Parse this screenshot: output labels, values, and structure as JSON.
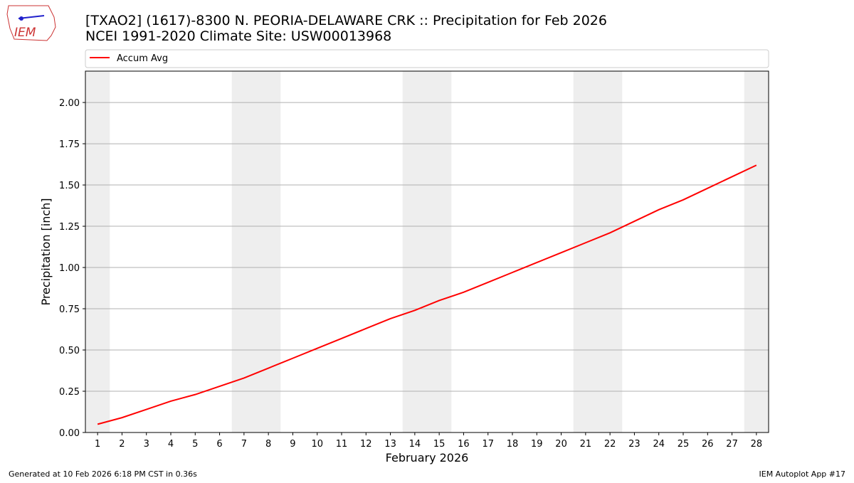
{
  "logo_text": "IEM",
  "footer_left": "Generated at 10 Feb 2026 6:18 PM CST in 0.36s",
  "footer_right": "IEM Autoplot App #17",
  "chart_data": {
    "type": "line",
    "title": "[TXAO2] (1617)-8300 N. PEORIA-DELAWARE CRK :: Precipitation for Feb 2026",
    "subtitle": "NCEI 1991-2020 Climate Site: USW00013968",
    "xlabel": "February 2026",
    "ylabel": "Precipitation [inch]",
    "x": [
      1,
      2,
      3,
      4,
      5,
      6,
      7,
      8,
      9,
      10,
      11,
      12,
      13,
      14,
      15,
      16,
      17,
      18,
      19,
      20,
      21,
      22,
      23,
      24,
      25,
      26,
      27,
      28
    ],
    "series": [
      {
        "name": "Accum Avg",
        "color": "#ff0000",
        "values": [
          0.05,
          0.09,
          0.14,
          0.19,
          0.23,
          0.28,
          0.33,
          0.39,
          0.45,
          0.51,
          0.57,
          0.63,
          0.69,
          0.74,
          0.8,
          0.85,
          0.91,
          0.97,
          1.03,
          1.09,
          1.15,
          1.21,
          1.28,
          1.35,
          1.41,
          1.48,
          1.55,
          1.62
        ]
      }
    ],
    "xlim": [
      0.5,
      28.5
    ],
    "ylim": [
      0,
      2.19
    ],
    "xticks": [
      1,
      2,
      3,
      4,
      5,
      6,
      7,
      8,
      9,
      10,
      11,
      12,
      13,
      14,
      15,
      16,
      17,
      18,
      19,
      20,
      21,
      22,
      23,
      24,
      25,
      26,
      27,
      28
    ],
    "yticks": [
      {
        "value": 0,
        "label": "0.00"
      },
      {
        "value": 0.25,
        "label": "0.25"
      },
      {
        "value": 0.5,
        "label": "0.50"
      },
      {
        "value": 0.75,
        "label": "0.75"
      },
      {
        "value": 1,
        "label": "1.00"
      },
      {
        "value": 1.25,
        "label": "1.25"
      },
      {
        "value": 1.5,
        "label": "1.50"
      },
      {
        "value": 1.75,
        "label": "1.75"
      },
      {
        "value": 2,
        "label": "2.00"
      }
    ],
    "shaded_spans": [
      [
        0.5,
        1.5
      ],
      [
        6.5,
        8.5
      ],
      [
        13.5,
        15.5
      ],
      [
        20.5,
        22.5
      ],
      [
        27.5,
        28.5
      ]
    ],
    "shade_color": "#eeeeee",
    "grid": true,
    "legend": "top"
  }
}
